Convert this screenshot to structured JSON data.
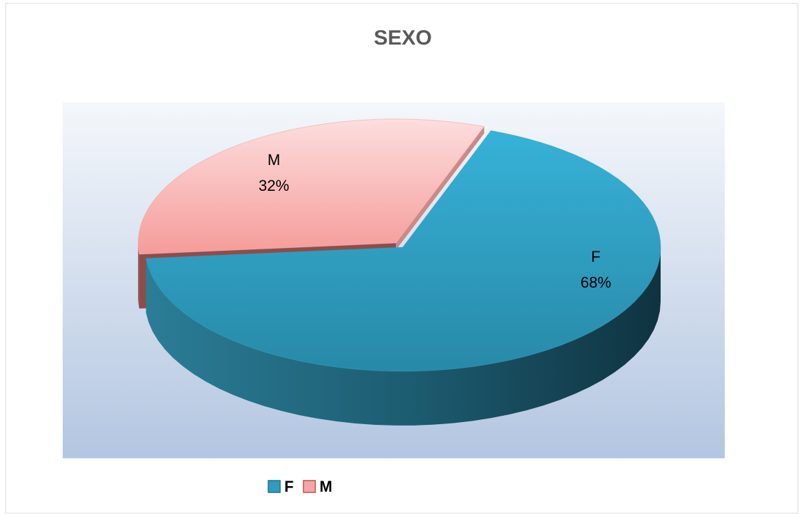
{
  "chart_data": {
    "type": "pie",
    "title": "SEXO",
    "categories": [
      "F",
      "M"
    ],
    "values": [
      68,
      32
    ],
    "value_labels": [
      "68%",
      "32%"
    ],
    "colors": [
      "#2e9bbf",
      "#f4a6a6"
    ],
    "legend": "bottom",
    "three_d": true
  }
}
